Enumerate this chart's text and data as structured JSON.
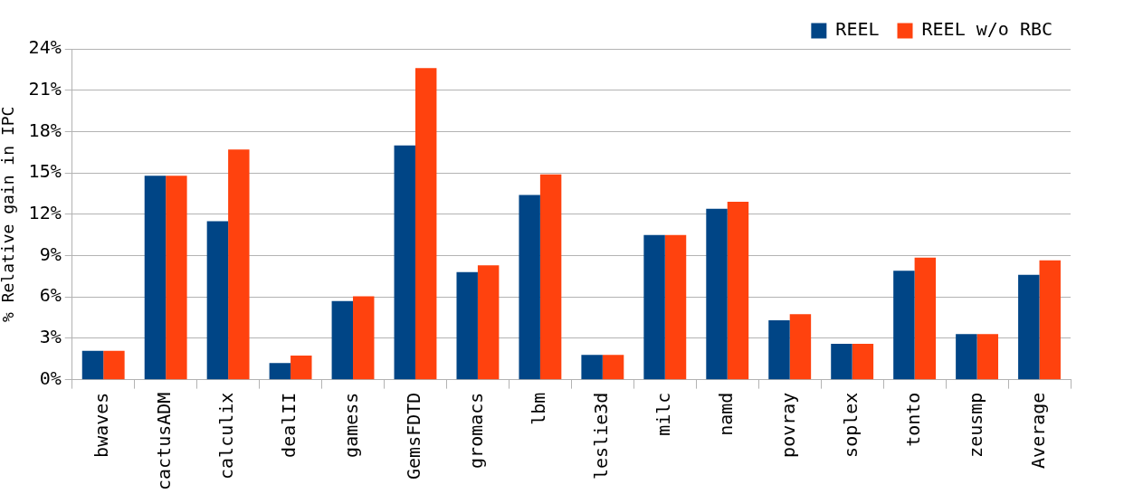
{
  "chart_data": {
    "type": "bar",
    "ylabel": "% Relative gain in IPC",
    "categories": [
      "bwaves",
      "cactusADM",
      "calculix",
      "dealII",
      "gamess",
      "GemsFDTD",
      "gromacs",
      "lbm",
      "leslie3d",
      "milc",
      "namd",
      "povray",
      "soplex",
      "tonto",
      "zeusmp",
      "Average"
    ],
    "series": [
      {
        "name": "REEL",
        "color": "#004586",
        "values": [
          2.1,
          14.8,
          11.5,
          1.2,
          5.7,
          17.0,
          7.8,
          13.4,
          1.8,
          10.5,
          12.4,
          4.3,
          2.6,
          7.9,
          3.3,
          7.6
        ]
      },
      {
        "name": "REEL w/o RBC",
        "color": "#ff420e",
        "values": [
          2.1,
          14.8,
          16.7,
          1.75,
          6.05,
          22.6,
          8.3,
          14.9,
          1.8,
          10.5,
          12.9,
          4.75,
          2.6,
          8.85,
          3.3,
          8.65
        ]
      }
    ],
    "ylim": [
      0,
      24
    ],
    "yticks": [
      {
        "value": 0,
        "label": "0%"
      },
      {
        "value": 3,
        "label": "3%"
      },
      {
        "value": 6,
        "label": "6%"
      },
      {
        "value": 9,
        "label": "9%"
      },
      {
        "value": 12,
        "label": "12%"
      },
      {
        "value": 15,
        "label": "15%"
      },
      {
        "value": 18,
        "label": "18%"
      },
      {
        "value": 21,
        "label": "21%"
      },
      {
        "value": 24,
        "label": "24%"
      }
    ],
    "grid": "y",
    "legend": "top right"
  }
}
